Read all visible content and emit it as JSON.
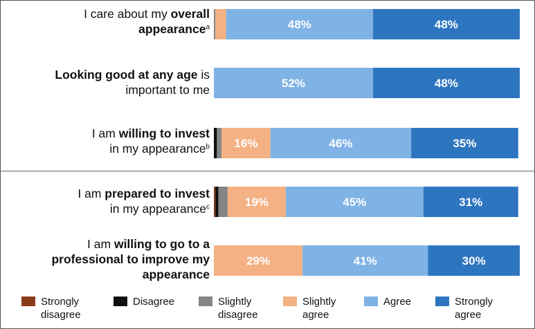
{
  "chart_data": {
    "type": "bar",
    "orientation": "horizontal",
    "stacked": true,
    "xlim": [
      0,
      100
    ],
    "grid": false,
    "legend_position": "bottom",
    "categories": [
      "I care about my overall appearance",
      "Looking good at any age is important to me",
      "I am willing to invest in my appearance",
      "I am prepared to invest in my appearance",
      "I am willing to go to a professional to improve my appearance"
    ],
    "series": [
      {
        "name": "Strongly disagree",
        "color": "#8b3a1a",
        "values": [
          0,
          0,
          0,
          0.5,
          0
        ]
      },
      {
        "name": "Disagree",
        "color": "#111111",
        "values": [
          0,
          0,
          1.0,
          1.0,
          0
        ]
      },
      {
        "name": "Slightly disagree",
        "color": "#858585",
        "values": [
          0.5,
          0,
          1.5,
          3.0,
          0
        ]
      },
      {
        "name": "Slightly agree",
        "color": "#f4b183",
        "values": [
          3.5,
          0,
          16,
          19,
          29
        ]
      },
      {
        "name": "Agree",
        "color": "#7fb2e5",
        "values": [
          48,
          52,
          46,
          45,
          41
        ]
      },
      {
        "name": "Strongly agree",
        "color": "#2e75c0",
        "values": [
          48,
          48,
          35,
          31,
          30
        ]
      }
    ],
    "data_labels": [
      [
        "",
        "",
        "",
        "",
        "48%",
        "48%"
      ],
      [
        "",
        "",
        "",
        "",
        "52%",
        "48%"
      ],
      [
        "",
        "",
        "",
        "16%",
        "46%",
        "35%"
      ],
      [
        "",
        "",
        "",
        "19%",
        "45%",
        "31%"
      ],
      [
        "",
        "",
        "",
        "29%",
        "41%",
        "30%"
      ]
    ]
  },
  "rows": [
    {
      "pre": "I care about my ",
      "bold1": "overall",
      "mid": "",
      "bold2": "appearance",
      "post": "",
      "sup": "a"
    },
    {
      "pre": "",
      "bold1": "Looking good at any age",
      "mid": " is",
      "bold2": "",
      "post": "important to me",
      "sup": ""
    },
    {
      "pre": "I am ",
      "bold1": "willing to invest",
      "mid": "",
      "bold2": "",
      "post": "in my appearance",
      "sup": "b"
    },
    {
      "pre": "I am ",
      "bold1": "prepared to invest",
      "mid": "",
      "bold2": "",
      "post": "in my appearance",
      "sup": "c"
    },
    {
      "pre": "I am ",
      "bold1": "willing to go to a",
      "mid": "",
      "bold2": "professional to improve my",
      "post": "appearance",
      "sup": ""
    }
  ],
  "legend": [
    {
      "line1": "Strongly",
      "line2": "disagree"
    },
    {
      "line1": "Disagree",
      "line2": ""
    },
    {
      "line1": "Slightly",
      "line2": "disagree"
    },
    {
      "line1": "Slightly",
      "line2": "agree"
    },
    {
      "line1": "Agree",
      "line2": ""
    },
    {
      "line1": "Strongly",
      "line2": "agree"
    }
  ]
}
